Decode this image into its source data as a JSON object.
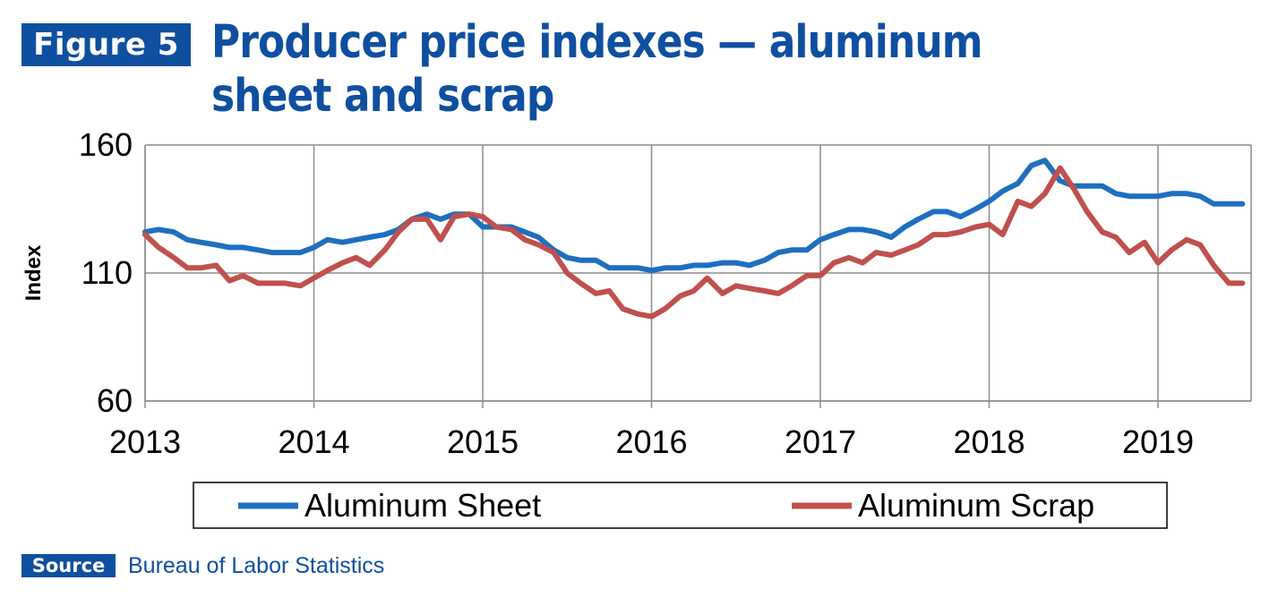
{
  "figure_label": "Figure 5",
  "title": "Producer price indexes — aluminum sheet and scrap",
  "source_label": "Source",
  "source_text": "Bureau of Labor Statistics",
  "colors": {
    "accent": "#0f4fa0",
    "sheet": "#1f6fbf",
    "scrap": "#c0504d",
    "grid": "#8c8c8c"
  },
  "chart_data": {
    "type": "line",
    "title": "Producer price indexes — aluminum sheet and scrap",
    "xlabel": "",
    "ylabel": "Index",
    "xlim": [
      2013,
      2019.55
    ],
    "ylim": [
      60,
      160
    ],
    "xticks": [
      "2013",
      "2014",
      "2015",
      "2016",
      "2017",
      "2018",
      "2019"
    ],
    "yticks": [
      "60",
      "110",
      "160"
    ],
    "grid": true,
    "legend": "bottom",
    "series": [
      {
        "name": "Aluminum Sheet",
        "color": "#1f6fbf",
        "x": [
          2013.0,
          2013.08,
          2013.17,
          2013.25,
          2013.33,
          2013.42,
          2013.5,
          2013.58,
          2013.67,
          2013.75,
          2013.83,
          2013.92,
          2014.0,
          2014.08,
          2014.17,
          2014.25,
          2014.33,
          2014.42,
          2014.5,
          2014.58,
          2014.67,
          2014.75,
          2014.83,
          2014.92,
          2015.0,
          2015.08,
          2015.17,
          2015.25,
          2015.33,
          2015.42,
          2015.5,
          2015.58,
          2015.67,
          2015.75,
          2015.83,
          2015.92,
          2016.0,
          2016.08,
          2016.17,
          2016.25,
          2016.33,
          2016.42,
          2016.5,
          2016.58,
          2016.67,
          2016.75,
          2016.83,
          2016.92,
          2017.0,
          2017.08,
          2017.17,
          2017.25,
          2017.33,
          2017.42,
          2017.5,
          2017.58,
          2017.67,
          2017.75,
          2017.83,
          2017.92,
          2018.0,
          2018.08,
          2018.17,
          2018.25,
          2018.33,
          2018.42,
          2018.5,
          2018.58,
          2018.67,
          2018.75,
          2018.83,
          2018.92,
          2019.0,
          2019.08,
          2019.17,
          2019.25,
          2019.33,
          2019.42,
          2019.5
        ],
        "values": [
          126,
          127,
          126,
          123,
          122,
          121,
          120,
          120,
          119,
          118,
          118,
          118,
          120,
          123,
          122,
          123,
          124,
          125,
          127,
          131,
          133,
          131,
          133,
          133,
          128,
          128,
          128,
          126,
          124,
          119,
          116,
          115,
          115,
          112,
          112,
          112,
          111,
          112,
          112,
          113,
          113,
          114,
          114,
          113,
          115,
          118,
          119,
          119,
          123,
          125,
          127,
          127,
          126,
          124,
          128,
          131,
          134,
          134,
          132,
          135,
          138,
          142,
          145,
          152,
          154,
          146,
          144,
          144,
          144,
          141,
          140,
          140,
          140,
          141,
          141,
          140,
          137,
          137,
          137
        ]
      },
      {
        "name": "Aluminum Scrap",
        "color": "#c0504d",
        "x": [
          2013.0,
          2013.08,
          2013.17,
          2013.25,
          2013.33,
          2013.42,
          2013.5,
          2013.58,
          2013.67,
          2013.75,
          2013.83,
          2013.92,
          2014.0,
          2014.08,
          2014.17,
          2014.25,
          2014.33,
          2014.42,
          2014.5,
          2014.58,
          2014.67,
          2014.75,
          2014.83,
          2014.92,
          2015.0,
          2015.08,
          2015.17,
          2015.25,
          2015.33,
          2015.42,
          2015.5,
          2015.58,
          2015.67,
          2015.75,
          2015.83,
          2015.92,
          2016.0,
          2016.08,
          2016.17,
          2016.25,
          2016.33,
          2016.42,
          2016.5,
          2016.58,
          2016.67,
          2016.75,
          2016.83,
          2016.92,
          2017.0,
          2017.08,
          2017.17,
          2017.25,
          2017.33,
          2017.42,
          2017.5,
          2017.58,
          2017.67,
          2017.75,
          2017.83,
          2017.92,
          2018.0,
          2018.08,
          2018.17,
          2018.25,
          2018.33,
          2018.42,
          2018.5,
          2018.58,
          2018.67,
          2018.75,
          2018.83,
          2018.92,
          2019.0,
          2019.08,
          2019.17,
          2019.25,
          2019.33,
          2019.42,
          2019.5
        ],
        "values": [
          125,
          120,
          116,
          112,
          112,
          113,
          107,
          109,
          106,
          106,
          106,
          105,
          108,
          111,
          114,
          116,
          113,
          119,
          126,
          131,
          131,
          123,
          132,
          133,
          132,
          128,
          127,
          123,
          121,
          118,
          110,
          106,
          102,
          103,
          96,
          94,
          93,
          96,
          101,
          103,
          108,
          102,
          105,
          104,
          103,
          102,
          105,
          109,
          109,
          114,
          116,
          114,
          118,
          117,
          119,
          121,
          125,
          125,
          126,
          128,
          129,
          125,
          138,
          136,
          141,
          151,
          143,
          134,
          126,
          124,
          118,
          122,
          114,
          119,
          123,
          121,
          113,
          106,
          106
        ]
      }
    ]
  }
}
